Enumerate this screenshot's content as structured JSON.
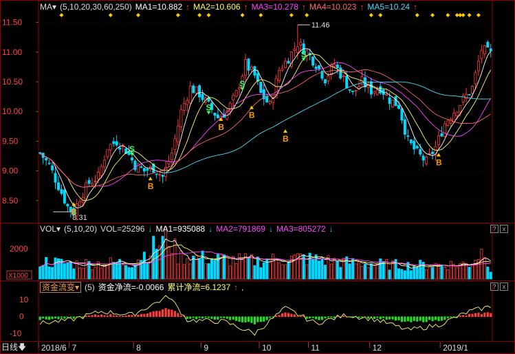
{
  "colors": {
    "bg": "#000000",
    "frame": "#8b0000",
    "grid": "#3a0000",
    "up": "#ff3b3b",
    "down": "#00d8ff",
    "ma5": "#ffffff",
    "ma10": "#ffff66",
    "ma20": "#ff44ff",
    "ma30": "#66ff66",
    "ma60": "#ff6666",
    "ma250": "#44ddff",
    "buy": "#ff9900",
    "sell": "#33ff66",
    "diamond": "#ffcc00"
  },
  "main_header": {
    "name": "MA",
    "params": "(5,10,20,30,60,250)",
    "ma1": "MA1=10.882",
    "ma2": "MA2=10.606",
    "ma3": "MA3=10.278",
    "ma4": "MA4=10.023",
    "ma5": "MA5=10.24"
  },
  "vol_header": {
    "name": "VOL",
    "params": "(5,10,20)",
    "vol": "VOL=25296",
    "ma1": "MA1=935088",
    "ma2": "MA2=791869",
    "ma3": "MA3=805272"
  },
  "flow_header": {
    "name": "资金流变",
    "params": "(5)",
    "net": "资金净流=-0.0066",
    "cum": "累计净流=6.1237",
    "tail": ","
  },
  "price_axis": {
    "ticks": [
      "11.50",
      "11.00",
      "10.50",
      "10.00",
      "9.50",
      "9.00",
      "8.50"
    ],
    "values": [
      11.5,
      11.0,
      10.5,
      10.0,
      9.5,
      9.0,
      8.5
    ],
    "ylim": [
      8.15,
      11.6
    ]
  },
  "vol_axis": {
    "ticks": [
      "2000"
    ],
    "unit": "X1000"
  },
  "flow_axis": {
    "ticks": [
      "10",
      "0",
      "-10"
    ]
  },
  "annotations": {
    "high": "11.46",
    "low": "8.31"
  },
  "signals": {
    "buy": "B",
    "sell": "S"
  },
  "time_axis": {
    "labels": [
      "2018/6",
      "7",
      "8",
      "9",
      "10",
      "11",
      "12",
      "2019/1"
    ]
  },
  "bottom_tab": "日线",
  "buttons": {
    "up": "↑",
    "down": "↓",
    "help": "?",
    "close": "x"
  },
  "chart_data": {
    "type": "candlestick",
    "x": "trading day index (0 = first visible day, June 2018)",
    "month_start_days": [
      0,
      10,
      31,
      53,
      72,
      88,
      108,
      131
    ],
    "price_keypoints": [
      [
        0,
        9.3
      ],
      [
        3,
        9.1
      ],
      [
        6,
        8.75
      ],
      [
        9,
        8.4
      ],
      [
        11,
        8.3
      ],
      [
        13,
        8.55
      ],
      [
        16,
        8.8
      ],
      [
        19,
        8.9
      ],
      [
        22,
        9.4
      ],
      [
        25,
        9.5
      ],
      [
        28,
        9.35
      ],
      [
        31,
        9.1
      ],
      [
        34,
        9.0
      ],
      [
        37,
        9.05
      ],
      [
        40,
        8.9
      ],
      [
        43,
        9.3
      ],
      [
        46,
        10.0
      ],
      [
        49,
        10.4
      ],
      [
        52,
        10.3
      ],
      [
        55,
        10.1
      ],
      [
        58,
        9.9
      ],
      [
        61,
        10.0
      ],
      [
        64,
        10.3
      ],
      [
        67,
        10.8
      ],
      [
        70,
        10.6
      ],
      [
        72,
        10.3
      ],
      [
        75,
        10.1
      ],
      [
        78,
        10.7
      ],
      [
        81,
        10.9
      ],
      [
        84,
        11.15
      ],
      [
        87,
        11.0
      ],
      [
        90,
        10.8
      ],
      [
        93,
        10.55
      ],
      [
        96,
        10.8
      ],
      [
        99,
        10.55
      ],
      [
        102,
        10.3
      ],
      [
        105,
        10.5
      ],
      [
        108,
        10.35
      ],
      [
        111,
        10.4
      ],
      [
        114,
        10.2
      ],
      [
        117,
        10.1
      ],
      [
        120,
        9.5
      ],
      [
        123,
        9.3
      ],
      [
        126,
        9.15
      ],
      [
        129,
        9.4
      ],
      [
        132,
        9.8
      ],
      [
        135,
        10.0
      ],
      [
        138,
        10.2
      ],
      [
        141,
        10.4
      ],
      [
        144,
        11.05
      ],
      [
        147,
        10.97
      ]
    ],
    "volume_keypoints": [
      [
        0,
        1200
      ],
      [
        10,
        1000
      ],
      [
        30,
        1100
      ],
      [
        42,
        2800
      ],
      [
        45,
        1500
      ],
      [
        60,
        1300
      ],
      [
        70,
        1200
      ],
      [
        85,
        1400
      ],
      [
        100,
        1100
      ],
      [
        120,
        900
      ],
      [
        140,
        1000
      ],
      [
        145,
        2000
      ],
      [
        147,
        600
      ]
    ],
    "flow_keypoints": [
      [
        0,
        -4
      ],
      [
        10,
        -2
      ],
      [
        20,
        3
      ],
      [
        30,
        1
      ],
      [
        42,
        12
      ],
      [
        48,
        -2
      ],
      [
        60,
        -3
      ],
      [
        70,
        -10
      ],
      [
        80,
        5
      ],
      [
        90,
        -4
      ],
      [
        100,
        1
      ],
      [
        110,
        -2
      ],
      [
        120,
        -8
      ],
      [
        130,
        -5
      ],
      [
        140,
        3
      ],
      [
        147,
        6
      ]
    ],
    "ma_series": [
      {
        "name": "MA1",
        "period": 5
      },
      {
        "name": "MA2",
        "period": 10
      },
      {
        "name": "MA3",
        "period": 20
      },
      {
        "name": "MA4",
        "period": 30
      },
      {
        "name": "MA5",
        "period": 60
      }
    ],
    "buy_signals": [
      [
        11,
        8.47
      ],
      [
        36,
        8.9
      ],
      [
        59,
        9.9
      ],
      [
        69,
        10.1
      ],
      [
        80,
        9.7
      ],
      [
        130,
        9.3
      ]
    ],
    "sell_signals": [
      [
        30,
        9.25
      ],
      [
        55,
        9.95
      ],
      [
        66,
        10.35
      ],
      [
        86,
        10.85
      ]
    ],
    "diamond_days": [
      7,
      23,
      32,
      45,
      52,
      55,
      66,
      72,
      82,
      87,
      108,
      111,
      123,
      128,
      133,
      136,
      137,
      138,
      140,
      143
    ]
  }
}
